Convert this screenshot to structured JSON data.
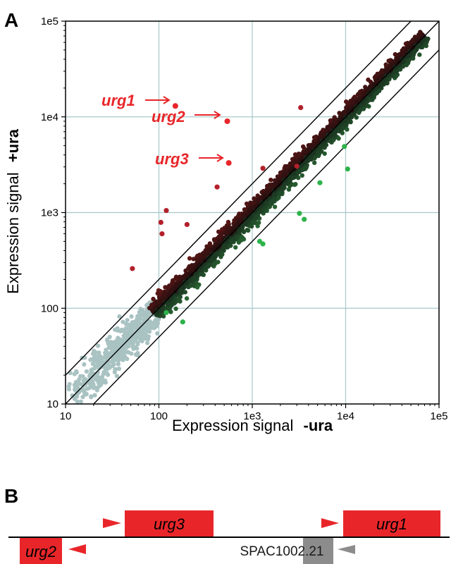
{
  "panel_a": {
    "label": "A",
    "xlabel_main": "Expression signal",
    "xlabel_bold": "-ura",
    "ylabel_main": "Expression signal",
    "ylabel_bold": "+ura",
    "x_ticks": [
      "10",
      "100",
      "1e3",
      "1e4",
      "1e5"
    ],
    "y_ticks": [
      "10",
      "100",
      "1e3",
      "1e4",
      "1e5"
    ],
    "annotations": [
      "urg1",
      "urg2",
      "urg3"
    ]
  },
  "panel_b": {
    "label": "B",
    "genes": [
      {
        "name": "urg3",
        "color": "#e8262a"
      },
      {
        "name": "urg1",
        "color": "#e8262a"
      },
      {
        "name": "urg2",
        "color": "#e8262a"
      },
      {
        "name": "SPAC1002.21",
        "color": "#8c8c8c"
      }
    ]
  },
  "chart_data": {
    "type": "scatter",
    "xscale": "log",
    "yscale": "log",
    "xlim": [
      10,
      100000
    ],
    "ylim": [
      10,
      100000
    ],
    "grid": true,
    "reference_lines": [
      {
        "slope": 1,
        "factor": 2
      },
      {
        "slope": 1,
        "factor": 1
      },
      {
        "slope": 1,
        "factor": 0.5
      }
    ],
    "colors": {
      "low_signal": "#a9c2c2",
      "up_regulated": "#e8262a",
      "down_regulated": "#2db34a",
      "dark_up": "#4a1a1a",
      "dark_down": "#1f4a2a"
    },
    "highlighted_points": [
      {
        "name": "urg1",
        "x": 150,
        "y": 13000
      },
      {
        "name": "urg2",
        "x": 540,
        "y": 9000
      },
      {
        "name": "urg3",
        "x": 560,
        "y": 3300
      }
    ],
    "outliers_up": [
      {
        "x": 52,
        "y": 260
      },
      {
        "x": 105,
        "y": 790
      },
      {
        "x": 108,
        "y": 600
      },
      {
        "x": 120,
        "y": 1050
      },
      {
        "x": 200,
        "y": 750
      },
      {
        "x": 420,
        "y": 1850
      },
      {
        "x": 1300,
        "y": 2900
      },
      {
        "x": 3300,
        "y": 12500
      },
      {
        "x": 3000,
        "y": 3050
      }
    ],
    "outliers_down": [
      {
        "x": 180,
        "y": 72
      },
      {
        "x": 120,
        "y": 90
      },
      {
        "x": 1200,
        "y": 500
      },
      {
        "x": 1300,
        "y": 470
      },
      {
        "x": 3200,
        "y": 980
      },
      {
        "x": 3600,
        "y": 850
      },
      {
        "x": 5300,
        "y": 2050
      },
      {
        "x": 9700,
        "y": 4900
      },
      {
        "x": 10500,
        "y": 2850
      }
    ]
  }
}
